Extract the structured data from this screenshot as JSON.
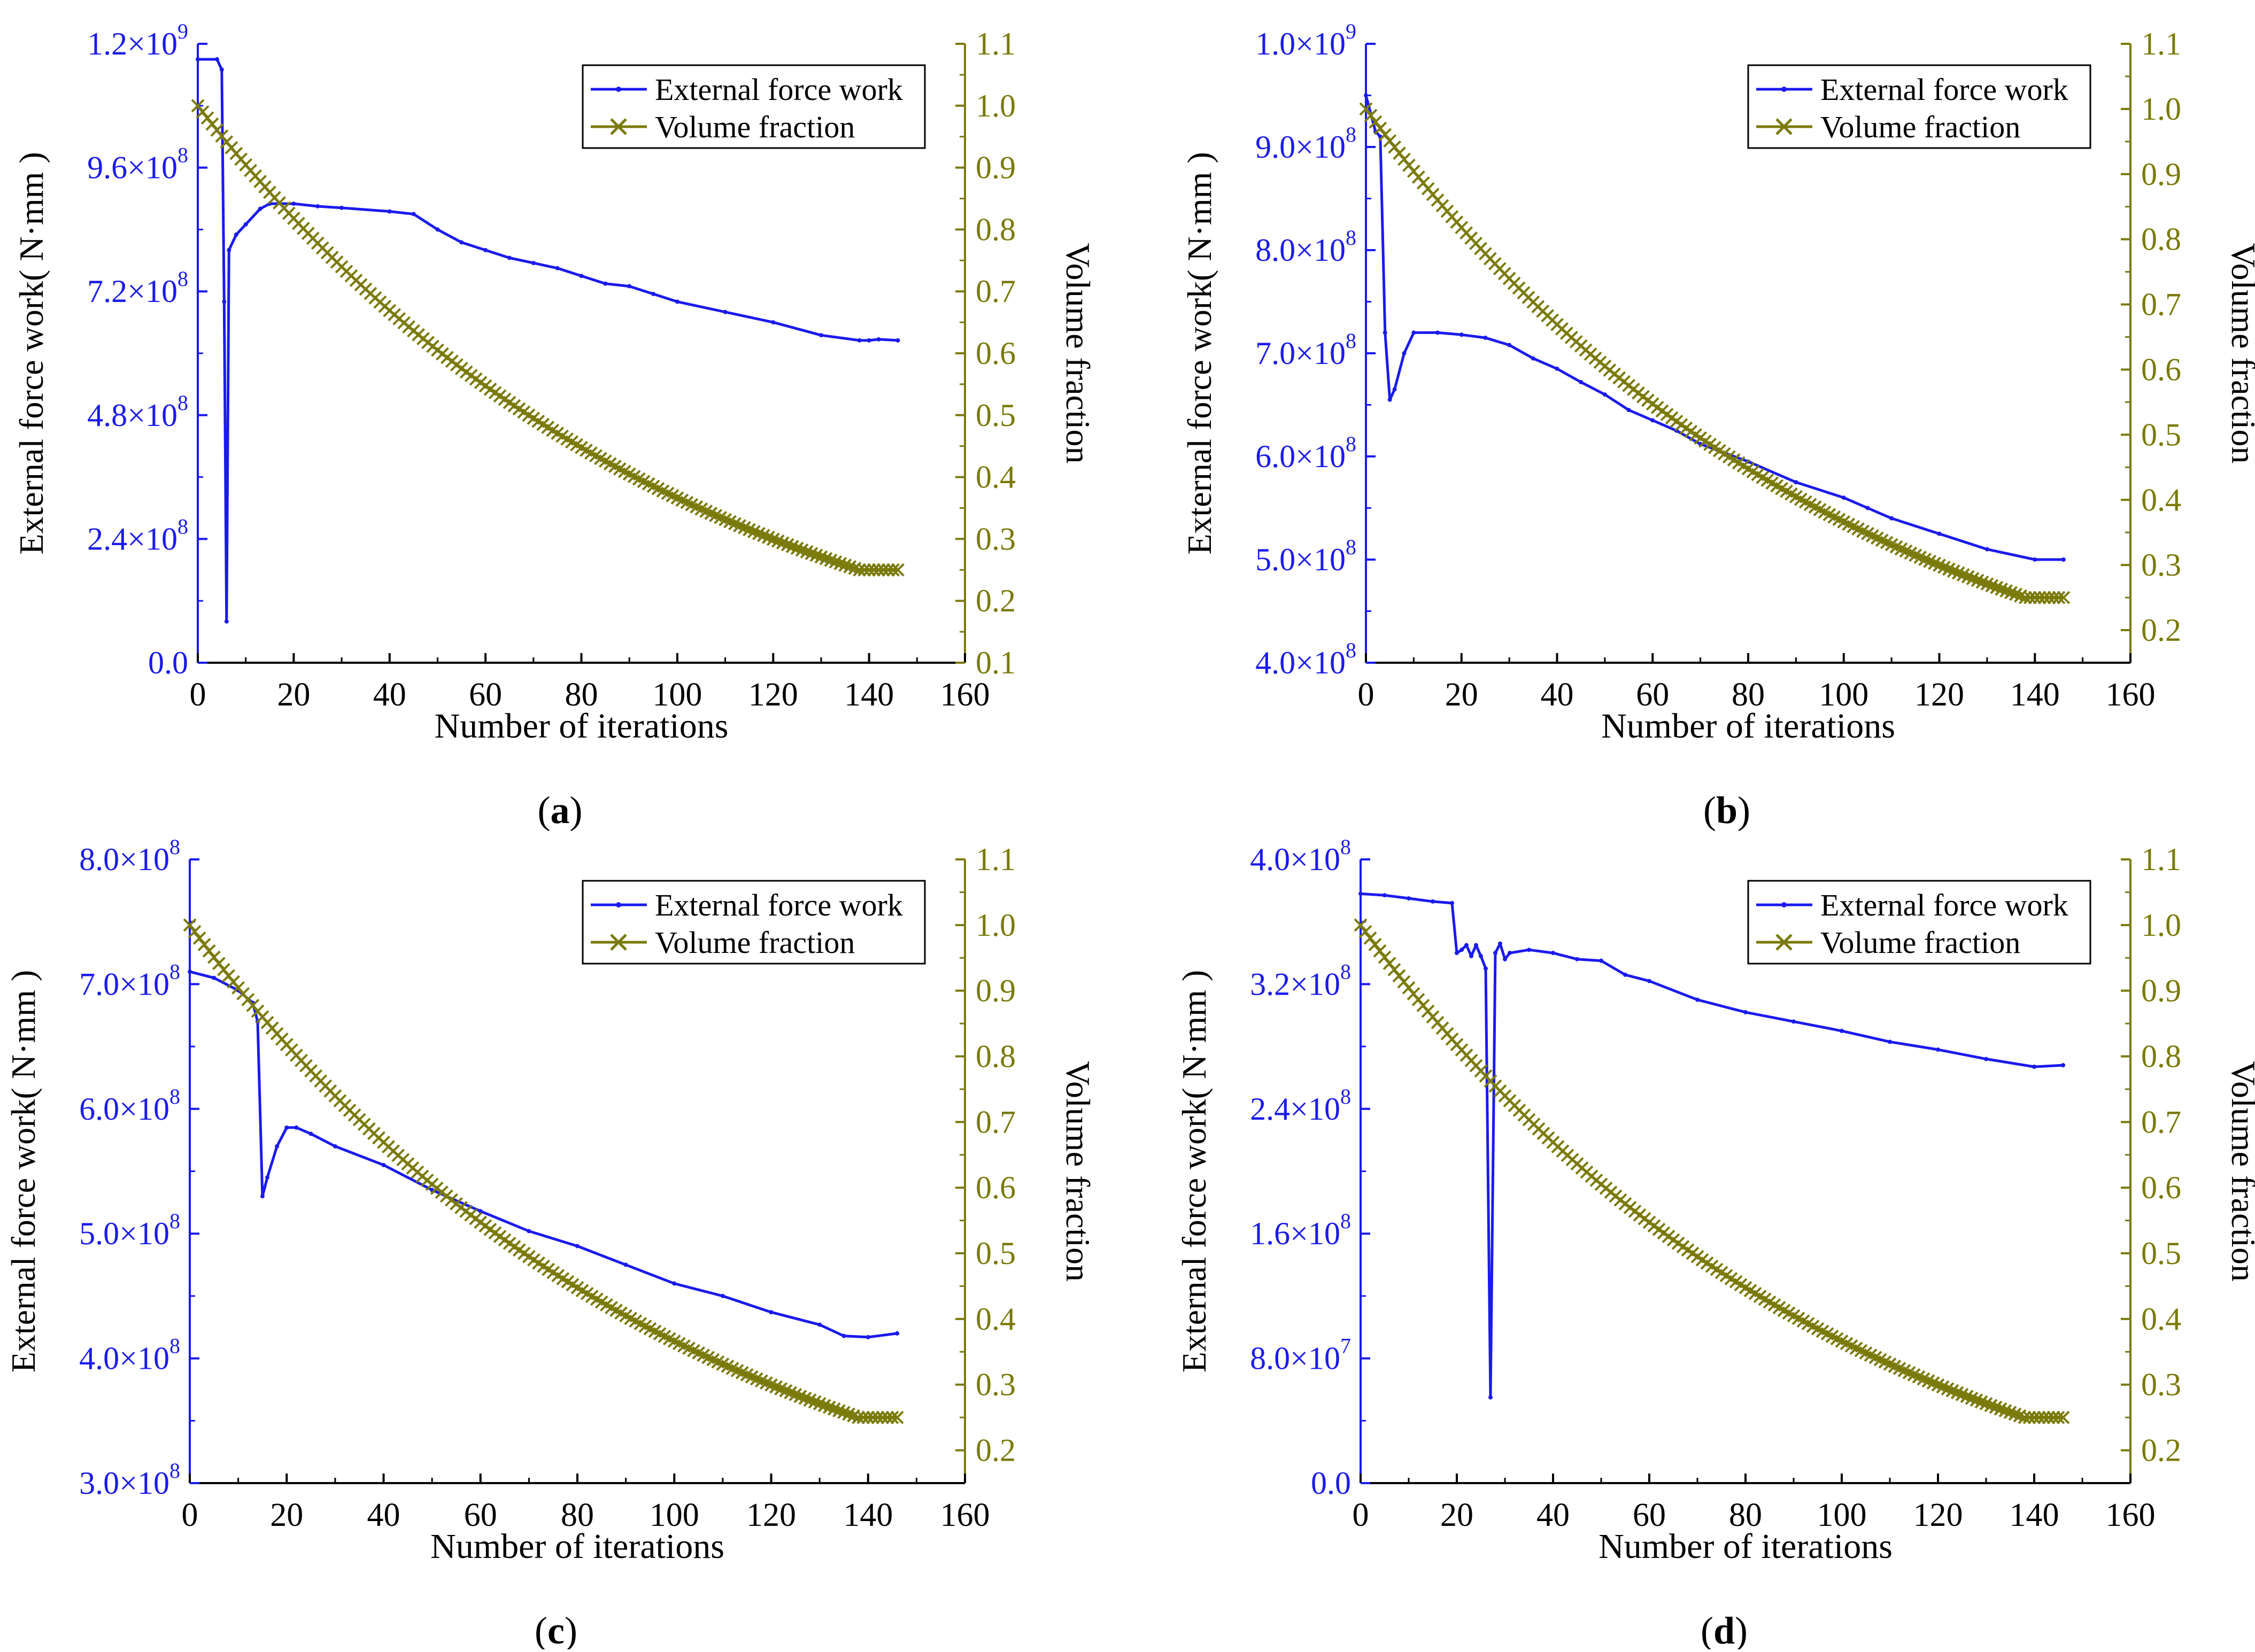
{
  "colors": {
    "force": "#1a1aee",
    "volume": "#7a7a0a",
    "axis": "#000000",
    "legend_border": "#000000"
  },
  "chart_data": [
    {
      "id": "a",
      "type": "line",
      "caption": "(a)",
      "caption_parts": [
        "(",
        "a",
        ")"
      ],
      "xlabel": "Number of iterations",
      "ylabel": "External force work( N·mm )",
      "y2label": "Volume fraction",
      "xlim": [
        0,
        160
      ],
      "ylim": [
        0,
        1200000000
      ],
      "y2lim": [
        0.1,
        1.1
      ],
      "xticks": [
        "0",
        "20",
        "40",
        "60",
        "80",
        "100",
        "120",
        "140",
        "160"
      ],
      "yticks": [
        {
          "base": "0.0",
          "exp": ""
        },
        {
          "base": "2.4×10",
          "exp": "8"
        },
        {
          "base": "4.8×10",
          "exp": "8"
        },
        {
          "base": "7.2×10",
          "exp": "8"
        },
        {
          "base": "9.6×10",
          "exp": "8"
        },
        {
          "base": "1.2×10",
          "exp": "9"
        }
      ],
      "y2ticks": [
        "0.1",
        "0.2",
        "0.3",
        "0.4",
        "0.5",
        "0.6",
        "0.7",
        "0.8",
        "0.9",
        "1.0",
        "1.1"
      ],
      "legend": {
        "position": "top-right",
        "entries": [
          "External force work",
          "Volume fraction"
        ]
      },
      "series": [
        {
          "name": "External force work",
          "axis": "left",
          "x": [
            0,
            4,
            5,
            5.5,
            6,
            6.5,
            8,
            10,
            13,
            15,
            20,
            25,
            30,
            40,
            45,
            50,
            55,
            60,
            65,
            70,
            75,
            80,
            85,
            90,
            95,
            100,
            110,
            120,
            130,
            138,
            140,
            142,
            146
          ],
          "y": [
            1170000000,
            1170000000,
            1150000000,
            700000000,
            80000000,
            800000000,
            830000000,
            850000000,
            880000000,
            890000000,
            890000000,
            885000000,
            882000000,
            875000000,
            870000000,
            840000000,
            815000000,
            800000000,
            785000000,
            775000000,
            765000000,
            750000000,
            735000000,
            730000000,
            715000000,
            700000000,
            680000000,
            660000000,
            635000000,
            625000000,
            625000000,
            627000000,
            625000000
          ]
        },
        {
          "name": "Volume fraction",
          "axis": "right",
          "decay": "geometric",
          "start": 1.0,
          "end": 0.25,
          "n_decay": 138,
          "n_total": 147
        }
      ]
    },
    {
      "id": "b",
      "type": "line",
      "caption": "(b)",
      "caption_parts": [
        "(",
        "b",
        ")"
      ],
      "xlabel": "Number of iterations",
      "ylabel": "External force work( N·mm )",
      "y2label": "Volume fraction",
      "xlim": [
        0,
        160
      ],
      "ylim": [
        400000000,
        1000000000
      ],
      "y2lim": [
        0.15,
        1.1
      ],
      "xticks": [
        "0",
        "20",
        "40",
        "60",
        "80",
        "100",
        "120",
        "140",
        "160"
      ],
      "yticks": [
        {
          "base": "4.0×10",
          "exp": "8"
        },
        {
          "base": "5.0×10",
          "exp": "8"
        },
        {
          "base": "6.0×10",
          "exp": "8"
        },
        {
          "base": "7.0×10",
          "exp": "8"
        },
        {
          "base": "8.0×10",
          "exp": "8"
        },
        {
          "base": "9.0×10",
          "exp": "8"
        },
        {
          "base": "1.0×10",
          "exp": "9"
        }
      ],
      "y2ticks": [
        "0.2",
        "0.3",
        "0.4",
        "0.5",
        "0.6",
        "0.7",
        "0.8",
        "0.9",
        "1.0",
        "1.1"
      ],
      "legend": {
        "position": "top-right",
        "entries": [
          "External force work",
          "Volume fraction"
        ]
      },
      "series": [
        {
          "name": "External force work",
          "axis": "left",
          "x": [
            0,
            2,
            3,
            4,
            5,
            6,
            8,
            10,
            15,
            20,
            25,
            30,
            35,
            40,
            45,
            50,
            55,
            60,
            65,
            70,
            80,
            90,
            100,
            105,
            110,
            120,
            130,
            140,
            146
          ],
          "y": [
            950000000,
            915000000,
            910000000,
            720000000,
            655000000,
            665000000,
            700000000,
            720000000,
            720000000,
            718000000,
            715000000,
            708000000,
            695000000,
            685000000,
            672000000,
            660000000,
            645000000,
            635000000,
            625000000,
            612000000,
            595000000,
            575000000,
            560000000,
            550000000,
            540000000,
            525000000,
            510000000,
            500000000,
            500000000
          ]
        },
        {
          "name": "Volume fraction",
          "axis": "right",
          "decay": "geometric",
          "start": 1.0,
          "end": 0.25,
          "n_decay": 138,
          "n_total": 147
        }
      ]
    },
    {
      "id": "c",
      "type": "line",
      "caption": "(c)",
      "caption_parts": [
        "(",
        "c",
        ")"
      ],
      "xlabel": "Number of iterations",
      "ylabel": "External force work( N·mm )",
      "y2label": "Volume fraction",
      "xlim": [
        0,
        160
      ],
      "ylim": [
        300000000,
        800000000
      ],
      "y2lim": [
        0.15,
        1.1
      ],
      "xticks": [
        "0",
        "20",
        "40",
        "60",
        "80",
        "100",
        "120",
        "140",
        "160"
      ],
      "yticks": [
        {
          "base": "3.0×10",
          "exp": "8"
        },
        {
          "base": "4.0×10",
          "exp": "8"
        },
        {
          "base": "5.0×10",
          "exp": "8"
        },
        {
          "base": "6.0×10",
          "exp": "8"
        },
        {
          "base": "7.0×10",
          "exp": "8"
        },
        {
          "base": "8.0×10",
          "exp": "8"
        }
      ],
      "y2ticks": [
        "0.2",
        "0.3",
        "0.4",
        "0.5",
        "0.6",
        "0.7",
        "0.8",
        "0.9",
        "1.0",
        "1.1"
      ],
      "legend": {
        "position": "top-right",
        "entries": [
          "External force work",
          "Volume fraction"
        ]
      },
      "series": [
        {
          "name": "External force work",
          "axis": "left",
          "x": [
            0,
            5,
            10,
            13,
            14,
            15,
            16,
            18,
            20,
            22,
            25,
            30,
            40,
            50,
            60,
            70,
            80,
            90,
            100,
            110,
            120,
            130,
            135,
            140,
            146
          ],
          "y": [
            710000000,
            705000000,
            695000000,
            685000000,
            670000000,
            530000000,
            545000000,
            570000000,
            585000000,
            585000000,
            580000000,
            570000000,
            555000000,
            535000000,
            518000000,
            502000000,
            490000000,
            475000000,
            460000000,
            450000000,
            437000000,
            427000000,
            418000000,
            417000000,
            420000000
          ]
        },
        {
          "name": "Volume fraction",
          "axis": "right",
          "decay": "geometric",
          "start": 1.0,
          "end": 0.25,
          "n_decay": 138,
          "n_total": 147
        }
      ]
    },
    {
      "id": "d",
      "type": "line",
      "caption": "(d)",
      "caption_parts": [
        "(",
        "d",
        ")"
      ],
      "xlabel": "Number of iterations",
      "ylabel": "External force work( N·mm )",
      "y2label": "Volume fraction",
      "xlim": [
        0,
        160
      ],
      "ylim": [
        0,
        400000000
      ],
      "y2lim": [
        0.15,
        1.1
      ],
      "xticks": [
        "0",
        "20",
        "40",
        "60",
        "80",
        "100",
        "120",
        "140",
        "160"
      ],
      "yticks": [
        {
          "base": "0.0",
          "exp": ""
        },
        {
          "base": "8.0×10",
          "exp": "7"
        },
        {
          "base": "1.6×10",
          "exp": "8"
        },
        {
          "base": "2.4×10",
          "exp": "8"
        },
        {
          "base": "3.2×10",
          "exp": "8"
        },
        {
          "base": "4.0×10",
          "exp": "8"
        }
      ],
      "y2ticks": [
        "0.2",
        "0.3",
        "0.4",
        "0.5",
        "0.6",
        "0.7",
        "0.8",
        "0.9",
        "1.0",
        "1.1"
      ],
      "legend": {
        "position": "top-right",
        "entries": [
          "External force work",
          "Volume fraction"
        ]
      },
      "series": [
        {
          "name": "External force work",
          "axis": "left",
          "x": [
            0,
            5,
            10,
            15,
            19,
            20,
            21,
            22,
            23,
            24,
            25,
            26,
            27,
            28,
            29,
            30,
            31,
            35,
            40,
            45,
            50,
            55,
            60,
            70,
            80,
            90,
            100,
            110,
            120,
            130,
            140,
            146
          ],
          "y": [
            378000000,
            377000000,
            375000000,
            373000000,
            372000000,
            340000000,
            342000000,
            345000000,
            338000000,
            345000000,
            338000000,
            330000000,
            55000000,
            340000000,
            346000000,
            336000000,
            340000000,
            342000000,
            340000000,
            336000000,
            335000000,
            326000000,
            322000000,
            310000000,
            302000000,
            296000000,
            290000000,
            283000000,
            278000000,
            272000000,
            267000000,
            268000000
          ]
        },
        {
          "name": "Volume fraction",
          "axis": "right",
          "decay": "geometric",
          "start": 1.0,
          "end": 0.25,
          "n_decay": 138,
          "n_total": 147
        }
      ]
    }
  ]
}
